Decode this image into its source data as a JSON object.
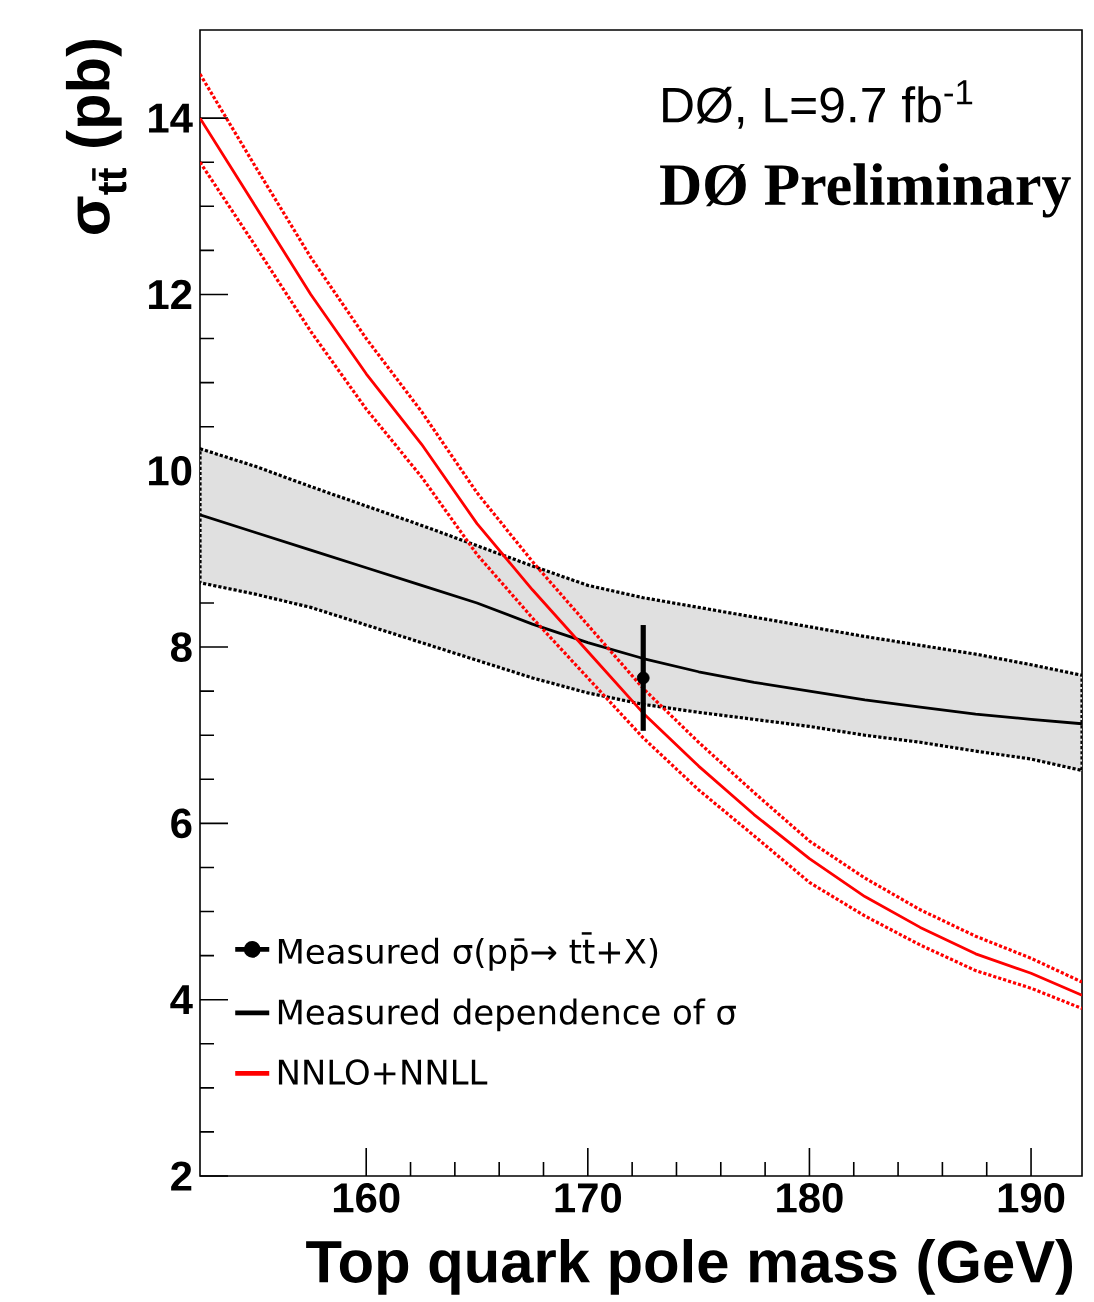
{
  "chart_data": {
    "type": "line",
    "xlabel": "Top quark pole mass (GeV)",
    "ylabel": "σ$_{tt̄}$ (pb)",
    "annotations": [
      "DØ, L=9.7 fb$^{-1}$",
      "**DØ Preliminary**"
    ],
    "xlim": [
      152.5,
      192.3
    ],
    "ylim": [
      2,
      15
    ],
    "xticks": [
      160,
      170,
      180,
      190
    ],
    "yticks": [
      2,
      4,
      6,
      8,
      10,
      12,
      14
    ],
    "legend": "bottom left",
    "grid": false,
    "series": [
      {
        "type": "scatter",
        "name": "Measured σ(pp̄→ tt̄+X)",
        "color": "#000000",
        "marker": "circle",
        "x": [
          172.5
        ],
        "values": [
          7.65
        ],
        "errors": [
          0.6
        ]
      },
      {
        "name": "Measured dependence of σ",
        "color": "#000000",
        "line_style": "solid",
        "x": [
          152.5,
          155,
          157.5,
          160,
          162.5,
          165,
          167.5,
          170,
          172.5,
          175,
          177.5,
          180,
          182.5,
          185,
          187.5,
          190,
          192.3
        ],
        "values": [
          9.5,
          9.3,
          9.1,
          8.9,
          8.7,
          8.5,
          8.26,
          8.05,
          7.87,
          7.72,
          7.6,
          7.5,
          7.4,
          7.32,
          7.24,
          7.18,
          7.13
        ],
        "lower": [
          8.73,
          8.6,
          8.45,
          8.25,
          8.05,
          7.85,
          7.65,
          7.48,
          7.35,
          7.26,
          7.18,
          7.1,
          7.0,
          6.92,
          6.82,
          6.73,
          6.6
        ],
        "upper": [
          10.25,
          10.05,
          9.82,
          9.6,
          9.38,
          9.15,
          8.92,
          8.7,
          8.56,
          8.45,
          8.34,
          8.23,
          8.12,
          8.02,
          7.92,
          7.8,
          7.68
        ]
      },
      {
        "name": "NNLO+NNLL",
        "color": "#ff0000",
        "line_style": "solid",
        "x": [
          152.5,
          155,
          157.5,
          160,
          162.5,
          165,
          167.5,
          170,
          172.5,
          175,
          177.5,
          180,
          182.5,
          185,
          187.5,
          190,
          192.3
        ],
        "values": [
          14.0,
          13.0,
          12.0,
          11.1,
          10.3,
          9.4,
          8.65,
          7.95,
          7.25,
          6.65,
          6.1,
          5.6,
          5.17,
          4.82,
          4.52,
          4.3,
          4.05
        ]
      },
      {
        "color": "#ff0000",
        "line_style": "dotted",
        "x": [
          152.5,
          155,
          157.5,
          160,
          162.5,
          165,
          167.5,
          170,
          172.5,
          175,
          177.5,
          180,
          182.5,
          185,
          187.5,
          190,
          192.3
        ],
        "values": [
          14.5,
          13.45,
          12.42,
          11.5,
          10.67,
          9.75,
          8.97,
          8.25,
          7.53,
          6.92,
          6.35,
          5.8,
          5.38,
          5.02,
          4.72,
          4.47,
          4.2
        ]
      },
      {
        "color": "#ff0000",
        "line_style": "dotted",
        "x": [
          152.5,
          155,
          157.5,
          160,
          162.5,
          165,
          167.5,
          170,
          172.5,
          175,
          177.5,
          180,
          182.5,
          185,
          187.5,
          190,
          192.3
        ],
        "values": [
          13.5,
          12.55,
          11.58,
          10.7,
          9.93,
          9.05,
          8.33,
          7.65,
          6.97,
          6.38,
          5.86,
          5.33,
          4.95,
          4.62,
          4.33,
          4.13,
          3.9
        ]
      }
    ]
  }
}
